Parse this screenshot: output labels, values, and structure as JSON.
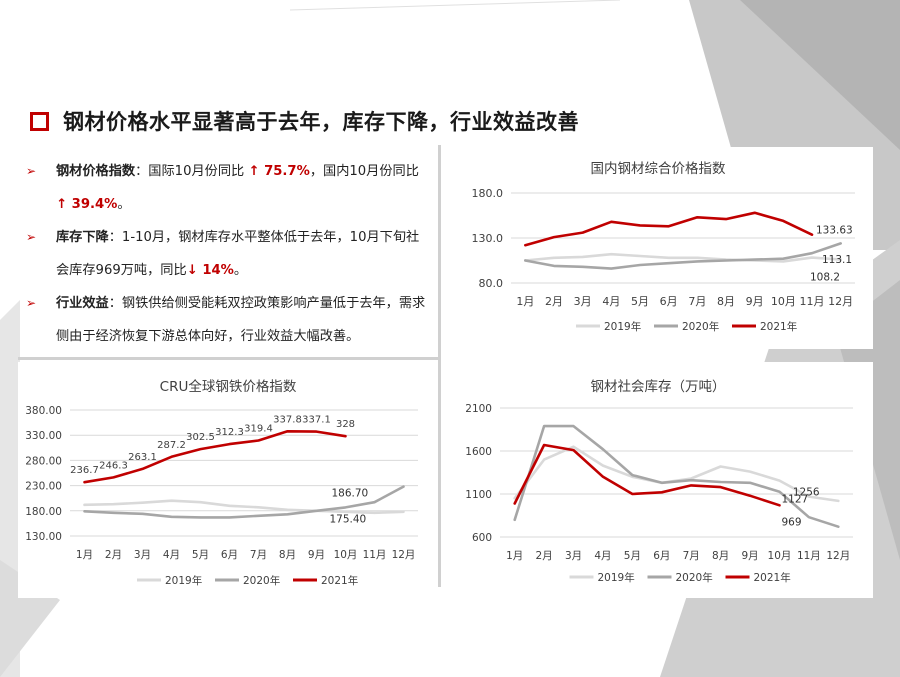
{
  "header": {
    "title": "钢材价格水平显著高于去年，库存下降，行业效益改善"
  },
  "bullets": [
    {
      "label": "钢材价格指数",
      "text_a": "：国际10月份同比",
      "red_a": "↑ 75.7%",
      "text_b": "，国内10月份同比",
      "red_b": "↑ 39.4%",
      "text_c": "。"
    },
    {
      "label": "库存下降",
      "text_a": "：1-10月，钢材库存水平整体低于去年，10月下旬社会库存969万吨，同比",
      "red_a": "↓ 14%",
      "text_b": "。"
    },
    {
      "label": "行业效益",
      "text_a": "：钢铁供给侧受能耗双控政策影响产量低于去年，需求侧由于经济恢复下游总体向好，行业效益大幅改善。"
    }
  ],
  "colors": {
    "accent": "#c00000",
    "series_2019": "#d9d9d9",
    "series_2020": "#a6a6a6",
    "series_2021": "#c00000",
    "grid": "#d9d9d9"
  },
  "chart_data": [
    {
      "id": "domestic",
      "type": "line",
      "title": "国内钢材综合价格指数",
      "categories": [
        "1月",
        "2月",
        "3月",
        "4月",
        "5月",
        "6月",
        "7月",
        "8月",
        "9月",
        "10月",
        "11月",
        "12月"
      ],
      "ylim": [
        80,
        180
      ],
      "yticks": [
        "80.0",
        "130.0",
        "180.0"
      ],
      "grid": true,
      "legend": "bottom",
      "series": [
        {
          "name": "2019年",
          "values": [
            105,
            108,
            109,
            112,
            110,
            108,
            108,
            106,
            105,
            104,
            108.2,
            106
          ]
        },
        {
          "name": "2020年",
          "values": [
            105,
            99,
            98,
            96,
            100,
            102,
            104,
            105,
            106,
            107,
            113.1,
            124
          ]
        },
        {
          "name": "2021年",
          "values": [
            122,
            131,
            136,
            148,
            144,
            143,
            153,
            151,
            158,
            149,
            133.63,
            null
          ]
        }
      ],
      "annotations": [
        "133.63",
        "113.1",
        "108.2"
      ]
    },
    {
      "id": "cru",
      "type": "line",
      "title": "CRU全球钢铁价格指数",
      "categories": [
        "1月",
        "2月",
        "3月",
        "4月",
        "5月",
        "6月",
        "7月",
        "8月",
        "9月",
        "10月",
        "11月",
        "12月"
      ],
      "ylim": [
        130,
        380
      ],
      "yticks": [
        "130.00",
        "180.00",
        "230.00",
        "280.00",
        "330.00",
        "380.00"
      ],
      "grid": true,
      "legend": "bottom",
      "series": [
        {
          "name": "2019年",
          "values": [
            192,
            193,
            196,
            200,
            197,
            190,
            187,
            182,
            180,
            178,
            176,
            178
          ]
        },
        {
          "name": "2020年",
          "values": [
            179,
            176,
            174,
            168,
            167,
            167,
            170,
            173,
            180,
            186.7,
            197,
            228
          ]
        },
        {
          "name": "2021年",
          "values": [
            236.7,
            246.3,
            263.1,
            287.2,
            302.5,
            312.3,
            319.4,
            337.8,
            337.1,
            328,
            null,
            null
          ]
        }
      ],
      "data_labels": [
        "236.7",
        "246.3",
        "263.1",
        "287.2",
        "302.5",
        "312.3",
        "319.4",
        "337.8",
        "337.1",
        "328"
      ],
      "annotations": [
        "186.70",
        "175.40"
      ]
    },
    {
      "id": "inventory",
      "type": "line",
      "title": "钢材社会库存（万吨）",
      "categories": [
        "1月",
        "2月",
        "3月",
        "4月",
        "5月",
        "6月",
        "7月",
        "8月",
        "9月",
        "10月",
        "11月",
        "12月"
      ],
      "ylim": [
        600,
        2100
      ],
      "yticks": [
        "600",
        "1100",
        "1600",
        "2100"
      ],
      "grid": true,
      "legend": "bottom",
      "series": [
        {
          "name": "2019年",
          "values": [
            1050,
            1500,
            1650,
            1430,
            1300,
            1230,
            1280,
            1420,
            1360,
            1256,
            1070,
            1020
          ]
        },
        {
          "name": "2020年",
          "values": [
            800,
            1890,
            1890,
            1620,
            1320,
            1230,
            1260,
            1240,
            1230,
            1127,
            830,
            720
          ]
        },
        {
          "name": "2021年",
          "values": [
            990,
            1670,
            1610,
            1300,
            1100,
            1120,
            1200,
            1180,
            1080,
            969,
            null,
            null
          ]
        }
      ],
      "annotations": [
        "1256",
        "1127",
        "969"
      ]
    }
  ]
}
